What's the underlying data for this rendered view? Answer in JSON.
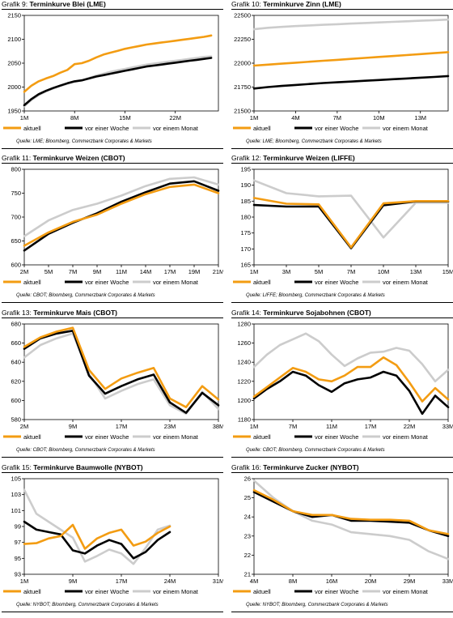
{
  "colors": {
    "aktuell": "#f39c12",
    "woche": "#000000",
    "monat": "#cccccc"
  },
  "legend": {
    "aktuell": "aktuell",
    "woche": "vor einer Woche",
    "monat": "vor einem Monat"
  },
  "charts": [
    {
      "title_prefix": "Grafik 9:",
      "title": "Terminkurve Blei (LME)",
      "source": "Quelle: LME; Bloomberg, Commerzbank Corporates & Markets",
      "chart_data": {
        "type": "line",
        "ylim": [
          1950,
          2150
        ],
        "yticks": [
          "1950",
          "2000",
          "2050",
          "2100",
          "2150"
        ],
        "xticks": [
          "1M",
          "8M",
          "15M",
          "22M"
        ],
        "xtick_pos": [
          0,
          7,
          14,
          21
        ],
        "xmax": 27,
        "series": [
          {
            "name": "aktuell",
            "values": [
              1990,
              2003,
              2012,
              2018,
              2023,
              2030,
              2036,
              2048,
              2050,
              2055,
              2062,
              2068,
              2072,
              2076,
              2080,
              2083,
              2086,
              2089,
              2091,
              2093,
              2095,
              2097,
              2099,
              2101,
              2103,
              2105,
              2108
            ]
          },
          {
            "name": "vor einer Woche",
            "values": [
              1962,
              1975,
              1985,
              1992,
              1998,
              2003,
              2008,
              2012,
              2014,
              2018,
              2022,
              2025,
              2028,
              2031,
              2034,
              2037,
              2040,
              2043,
              2045,
              2047,
              2049,
              2051,
              2053,
              2055,
              2057,
              2059,
              2061
            ]
          },
          {
            "name": "vor einem Monat",
            "values": [
              1960,
              1973,
              1983,
              1991,
              1997,
              2002,
              2007,
              2011,
              2014,
              2019,
              2024,
              2028,
              2032,
              2035,
              2038,
              2041,
              2044,
              2047,
              2049,
              2051,
              2053,
              2055,
              2057,
              2059,
              2061,
              2063,
              2064
            ]
          }
        ]
      }
    },
    {
      "title_prefix": "Grafik 10:",
      "title": "Terminkurve Zinn (LME)",
      "source": "Quelle: LME; Bloomberg, Commerzbank Corporates & Markets",
      "chart_data": {
        "type": "line",
        "ylim": [
          21500,
          22500
        ],
        "yticks": [
          "21500",
          "21750",
          "22000",
          "22250",
          "22500"
        ],
        "xticks": [
          "1M",
          "4M",
          "7M",
          "10M",
          "13M"
        ],
        "xtick_pos": [
          0,
          3,
          6,
          9,
          12
        ],
        "xmax": 14,
        "series": [
          {
            "name": "aktuell",
            "values": [
              21975,
              21985,
              21995,
              22005,
              22015,
              22025,
              22035,
              22045,
              22055,
              22065,
              22075,
              22085,
              22095,
              22105,
              22115
            ]
          },
          {
            "name": "vor einer Woche",
            "values": [
              21735,
              21750,
              21762,
              21772,
              21782,
              21792,
              21800,
              21808,
              21816,
              21824,
              21832,
              21840,
              21848,
              21856,
              21865
            ]
          },
          {
            "name": "vor einem Monat",
            "values": [
              22355,
              22370,
              22380,
              22388,
              22395,
              22402,
              22408,
              22414,
              22420,
              22426,
              22432,
              22438,
              22444,
              22450,
              22456
            ]
          }
        ]
      }
    },
    {
      "title_prefix": "Grafik 11:",
      "title": "Terminkurve Weizen (CBOT)",
      "source": "Quelle: CBOT; Bloomberg, Commerzbank Corporates & Markets",
      "chart_data": {
        "type": "line",
        "ylim": [
          600,
          800
        ],
        "yticks": [
          "600",
          "650",
          "700",
          "750",
          "800"
        ],
        "xticks": [
          "2M",
          "5M",
          "7M",
          "9M",
          "11M",
          "14M",
          "17M",
          "19M",
          "21M"
        ],
        "xtick_pos": [
          0,
          1,
          2,
          3,
          4,
          5,
          6,
          7,
          8
        ],
        "xmax": 8,
        "series": [
          {
            "name": "aktuell",
            "values": [
              640,
              668,
              690,
              705,
              728,
              748,
              763,
              768,
              750
            ]
          },
          {
            "name": "vor einer Woche",
            "values": [
              630,
              665,
              688,
              708,
              732,
              752,
              770,
              775,
              755
            ]
          },
          {
            "name": "vor einem Monat",
            "values": [
              660,
              693,
              715,
              728,
              745,
              765,
              780,
              783,
              768
            ]
          }
        ]
      }
    },
    {
      "title_prefix": "Grafik 12:",
      "title": "Terminkurve Weizen (LIFFE)",
      "source": "Quelle: LIFFE; Bloomberg, Commerzbank Corporates & Markets",
      "chart_data": {
        "type": "line",
        "ylim": [
          165,
          195
        ],
        "yticks": [
          "165",
          "170",
          "175",
          "180",
          "185",
          "190",
          "195"
        ],
        "xticks": [
          "1M",
          "3M",
          "5M",
          "7M",
          "10M",
          "13M",
          "15M"
        ],
        "xtick_pos": [
          0,
          1,
          2,
          3,
          4,
          5,
          6
        ],
        "xmax": 6,
        "series": [
          {
            "name": "aktuell",
            "values": [
              186,
              184.2,
              184,
              170.5,
              184.3,
              185,
              185
            ]
          },
          {
            "name": "vor einer Woche",
            "values": [
              183.8,
              183.3,
              183.3,
              170.2,
              183.7,
              184.9,
              184.9
            ]
          },
          {
            "name": "vor einem Monat",
            "values": [
              191.5,
              187.5,
              186.5,
              186.7,
              173.6,
              184.5,
              184.5
            ]
          }
        ]
      }
    },
    {
      "title_prefix": "Grafik 13:",
      "title": "Terminkurve Mais (CBOT)",
      "source": "Quelle: CBOT; Bloomberg, Commerzbank Corporates & Markets",
      "chart_data": {
        "type": "line",
        "ylim": [
          580,
          680
        ],
        "yticks": [
          "580",
          "600",
          "620",
          "640",
          "660",
          "680"
        ],
        "xticks": [
          "2M",
          "9M",
          "17M",
          "23M",
          "38M"
        ],
        "xtick_pos": [
          0,
          3,
          6,
          9,
          12
        ],
        "xmax": 12,
        "series": [
          {
            "name": "aktuell",
            "values": [
              656,
              666,
              672,
              676,
              632,
              612,
              623,
              629,
              634,
              602,
              593,
              615,
              601
            ]
          },
          {
            "name": "vor einer Woche",
            "values": [
              654,
              665,
              670,
              673,
              626,
              607,
              615,
              622,
              627,
              598,
              587,
              608,
              595
            ]
          },
          {
            "name": "vor einem Monat",
            "values": [
              645,
              658,
              665,
              670,
              628,
              602,
              610,
              617,
              622,
              595,
              586,
              609,
              591
            ]
          }
        ]
      }
    },
    {
      "title_prefix": "Grafik 14:",
      "title": "Terminkurve Sojabohnen (CBOT)",
      "source": "Quelle: CBOT; Bloomberg, Commerzbank Corporates & Markets",
      "chart_data": {
        "type": "line",
        "ylim": [
          1180,
          1280
        ],
        "yticks": [
          "1180",
          "1200",
          "1220",
          "1240",
          "1260",
          "1280"
        ],
        "xticks": [
          "1M",
          "7M",
          "11M",
          "17M",
          "22M",
          "33M"
        ],
        "xtick_pos": [
          0,
          3,
          6,
          9,
          12,
          15
        ],
        "xmax": 15,
        "series": [
          {
            "name": "aktuell",
            "values": [
              1204,
              1214,
              1224,
              1234,
              1230,
              1222,
              1220,
              1226,
              1235,
              1235,
              1245,
              1237,
              1219,
              1199,
              1213,
              1201
            ]
          },
          {
            "name": "vor einer Woche",
            "values": [
              1202,
              1212,
              1220,
              1230,
              1226,
              1216,
              1209,
              1218,
              1222,
              1224,
              1230,
              1226,
              1210,
              1186,
              1205,
              1193
            ]
          },
          {
            "name": "vor einem Monat",
            "values": [
              1235,
              1248,
              1258,
              1264,
              1270,
              1262,
              1248,
              1236,
              1244,
              1250,
              1251,
              1255,
              1252,
              1238,
              1220,
              1232
            ]
          }
        ]
      }
    },
    {
      "title_prefix": "Grafik 15:",
      "title": "Terminkurve Baumwolle (NYBOT)",
      "source": "Quelle: NYBOT; Bloomberg, Commerzbank Corporates & Markets",
      "chart_data": {
        "type": "line",
        "ylim": [
          93,
          105
        ],
        "yticks": [
          "93",
          "95",
          "97",
          "99",
          "101",
          "103",
          "105"
        ],
        "xticks": [
          "1M",
          "9M",
          "17M",
          "24M",
          "31M"
        ],
        "xtick_pos": [
          0,
          4,
          8,
          12,
          16
        ],
        "xmax": 16,
        "series": [
          {
            "name": "aktuell",
            "values": [
              96.8,
              96.9,
              97.5,
              97.8,
              99.2,
              96.2,
              97.5,
              98.2,
              98.6,
              96.6,
              97.1,
              98.2,
              99
            ]
          },
          {
            "name": "vor einer Woche",
            "values": [
              99.6,
              98.6,
              98.3,
              98,
              96,
              95.6,
              96.6,
              97.3,
              96.8,
              95,
              95.8,
              97.3,
              98.3
            ]
          },
          {
            "name": "vor einem Monat",
            "values": [
              103.6,
              100.6,
              99.6,
              98.6,
              97.6,
              94.6,
              95.3,
              96.1,
              95.6,
              94.3,
              96.3,
              98.6,
              99.1
            ]
          }
        ]
      }
    },
    {
      "title_prefix": "Grafik 16:",
      "title": "Terminkurve Zucker (NYBOT)",
      "source": "Quelle: NYBOT; Bloomberg, Commerzbank Corporates & Markets",
      "chart_data": {
        "type": "line",
        "ylim": [
          21,
          26
        ],
        "yticks": [
          "21",
          "22",
          "23",
          "24",
          "25",
          "26"
        ],
        "xticks": [
          "4M",
          "8M",
          "16M",
          "20M",
          "29M",
          "33M"
        ],
        "xtick_pos": [
          0,
          2,
          4,
          6,
          8,
          10
        ],
        "xmax": 10,
        "series": [
          {
            "name": "aktuell",
            "values": [
              25.4,
              24.9,
              24.3,
              24.1,
              24.1,
              23.9,
              23.85,
              23.85,
              23.8,
              23.3,
              23.1
            ]
          },
          {
            "name": "vor einer Woche",
            "values": [
              25.3,
              24.8,
              24.3,
              24,
              24.1,
              23.8,
              23.8,
              23.75,
              23.7,
              23.3,
              23
            ]
          },
          {
            "name": "vor einem Monat",
            "values": [
              25.9,
              25,
              24.3,
              23.8,
              23.6,
              23.2,
              23.1,
              23,
              22.8,
              22.2,
              21.8
            ]
          }
        ]
      }
    }
  ]
}
